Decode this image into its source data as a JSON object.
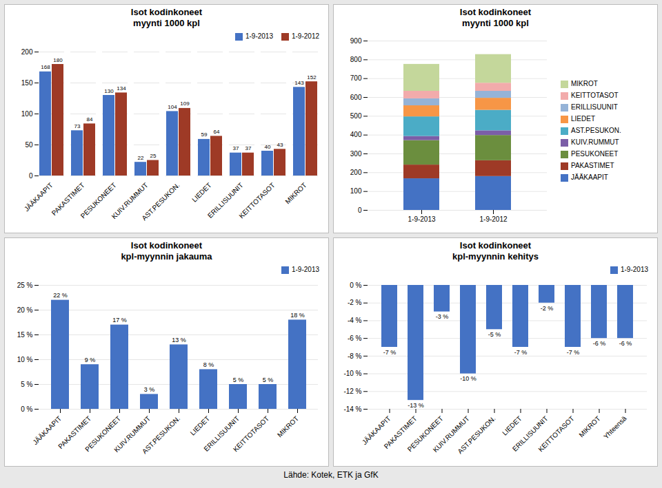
{
  "chart_data": [
    {
      "type": "bar",
      "title": "Isot kodinkoneet\nmyynti 1000 kpl",
      "categories": [
        "JÄÄKAAPIT",
        "PAKASTIMET",
        "PESUKONEET",
        "KUIV.RUMMUT",
        "AST.PESUKON.",
        "LIEDET",
        "ERILLISUUNIT",
        "KEITTOTASOT",
        "MIKROT"
      ],
      "series": [
        {
          "name": "1-9-2013",
          "color": "#4472C4",
          "values": [
            168,
            73,
            130,
            22,
            104,
            59,
            37,
            40,
            143
          ]
        },
        {
          "name": "1-9-2012",
          "color": "#9E3A26",
          "values": [
            180,
            84,
            134,
            25,
            109,
            64,
            37,
            43,
            152
          ]
        }
      ],
      "ylim": [
        0,
        200
      ],
      "yticks": [
        0,
        50,
        100,
        150,
        200
      ],
      "grid": true,
      "legend": "upper right",
      "data_labels": true
    },
    {
      "type": "bar",
      "title": "Isot kodinkoneet\nmyynti 1000 kpl",
      "categories": [
        "1-9-2013",
        "1-9-2012"
      ],
      "series": [
        {
          "name": "JÄÄKAAPIT",
          "color": "#4472C4",
          "values": [
            168,
            180
          ]
        },
        {
          "name": "PAKASTIMET",
          "color": "#9E3A26",
          "values": [
            73,
            84
          ]
        },
        {
          "name": "PESUKONEET",
          "color": "#6B8E3E",
          "values": [
            130,
            134
          ]
        },
        {
          "name": "KUIV.RUMMUT",
          "color": "#7B5EA7",
          "values": [
            22,
            25
          ]
        },
        {
          "name": "AST.PESUKON.",
          "color": "#4BACC6",
          "values": [
            104,
            109
          ]
        },
        {
          "name": "LIEDET",
          "color": "#F79646",
          "values": [
            59,
            64
          ]
        },
        {
          "name": "ERILLISUUNIT",
          "color": "#95B3D7",
          "values": [
            37,
            37
          ]
        },
        {
          "name": "KEITTOTASOT",
          "color": "#F2ABAB",
          "values": [
            40,
            43
          ]
        },
        {
          "name": "MIKROT",
          "color": "#C4D79B",
          "values": [
            143,
            152
          ]
        }
      ],
      "stacked": true,
      "ylim": [
        0,
        900
      ],
      "yticks": [
        0,
        100,
        200,
        300,
        400,
        500,
        600,
        700,
        800,
        900
      ],
      "grid": true,
      "legend": "right"
    },
    {
      "type": "bar",
      "title": "Isot kodinkoneet\nkpl-myynnin jakauma",
      "categories": [
        "JÄÄKAAPIT",
        "PAKASTIMET",
        "PESUKONEET",
        "KUIV.RUMMUT",
        "AST.PESUKON.",
        "LIEDET",
        "ERILLISUUNIT",
        "KEITTOTASOT",
        "MIKROT"
      ],
      "series": [
        {
          "name": "1-9-2013",
          "color": "#4472C4",
          "values": [
            22,
            9,
            17,
            3,
            13,
            8,
            5,
            5,
            18
          ],
          "value_labels": [
            "22 %",
            "9 %",
            "17 %",
            "3 %",
            "13 %",
            "8 %",
            "5 %",
            "5 %",
            "18 %"
          ]
        }
      ],
      "ylim": [
        0,
        25
      ],
      "yticks": [
        {
          "value": 0,
          "label": "0 %"
        },
        {
          "value": 5,
          "label": "5 %"
        },
        {
          "value": 10,
          "label": "10 %"
        },
        {
          "value": 15,
          "label": "15 %"
        },
        {
          "value": 20,
          "label": "20 %"
        },
        {
          "value": 25,
          "label": "25 %"
        }
      ],
      "grid": true,
      "legend": "upper right",
      "data_labels": true
    },
    {
      "type": "bar",
      "title": "Isot kodinkoneet\nkpl-myynnin kehitys",
      "categories": [
        "JÄÄKAAPIT",
        "PAKASTIMET",
        "PESUKONEET",
        "KUIV.RUMMUT",
        "AST.PESUKON.",
        "LIEDET",
        "ERILLISUUNIT",
        "KEITTOTASOT",
        "MIKROT",
        "Yhteensä"
      ],
      "series": [
        {
          "name": "1-9-2013",
          "color": "#4472C4",
          "values": [
            -7,
            -13,
            -3,
            -10,
            -5,
            -7,
            -2,
            -7,
            -6,
            -6
          ],
          "value_labels": [
            "-7 %",
            "-13 %",
            "-3 %",
            "-10 %",
            "-5 %",
            "-7 %",
            "-2 %",
            "-7 %",
            "-6 %",
            "-6 %"
          ]
        }
      ],
      "ylim": [
        -14,
        0
      ],
      "yticks": [
        {
          "value": 0,
          "label": "0 %"
        },
        {
          "value": -2,
          "label": "-2 %"
        },
        {
          "value": -4,
          "label": "-4 %"
        },
        {
          "value": -6,
          "label": "-6 %"
        },
        {
          "value": -8,
          "label": "-8 %"
        },
        {
          "value": -10,
          "label": "-10 %"
        },
        {
          "value": -12,
          "label": "-12 %"
        },
        {
          "value": -14,
          "label": "-14 %"
        }
      ],
      "grid": true,
      "legend": "upper right",
      "data_labels": true
    }
  ],
  "caption": "Lähde: Kotek, ETK ja GfK"
}
